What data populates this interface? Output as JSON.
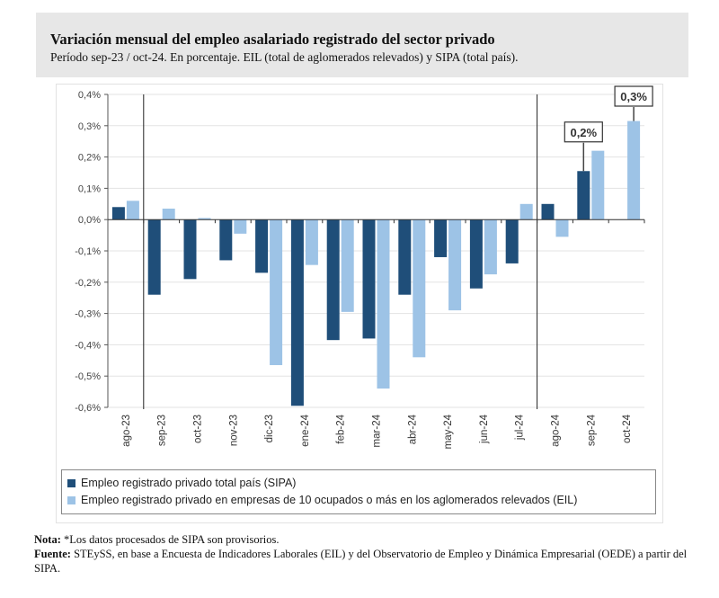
{
  "header": {
    "title": "Variación mensual del empleo asalariado registrado del sector privado",
    "subtitle": "Período sep-23 / oct-24. En porcentaje. EIL (total de aglomerados relevados) y SIPA (total país)."
  },
  "chart_data": {
    "type": "bar",
    "categories": [
      "ago-23",
      "sep-23",
      "oct-23",
      "nov-23",
      "dic-23",
      "ene-24",
      "feb-24",
      "mar-24",
      "abr-24",
      "may-24",
      "jun-24",
      "jul-24",
      "ago-24",
      "sep-24",
      "oct-24"
    ],
    "series": [
      {
        "name": "Empleo registrado privado total país (SIPA)",
        "color": "#1f4e79",
        "values": [
          0.04,
          -0.24,
          -0.19,
          -0.13,
          -0.17,
          -0.595,
          -0.385,
          -0.38,
          -0.24,
          -0.12,
          -0.22,
          -0.14,
          0.05,
          0.155,
          null
        ]
      },
      {
        "name": "Empleo registrado privado en empresas de 10 ocupados o más en los aglomerados relevados (EIL)",
        "color": "#9dc3e6",
        "values": [
          0.06,
          0.035,
          0.005,
          -0.045,
          -0.465,
          -0.145,
          -0.295,
          -0.54,
          -0.44,
          -0.29,
          -0.175,
          0.05,
          -0.055,
          0.22,
          0.315
        ]
      }
    ],
    "yticks": [
      "0,4%",
      "0,3%",
      "0,2%",
      "0,1%",
      "0,0%",
      "-0,1%",
      "-0,2%",
      "-0,3%",
      "-0,4%",
      "-0,5%",
      "-0,6%"
    ],
    "ylim": [
      -0.6,
      0.4
    ],
    "grid": true,
    "legend": "bottom",
    "annotations": [
      {
        "category": "sep-24",
        "series": 0,
        "text": "0,2%"
      },
      {
        "category": "oct-24",
        "series": 1,
        "text": "0,3%"
      }
    ]
  },
  "notes": {
    "nota_label": "Nota:",
    "nota": " *Los datos procesados de SIPA son provisorios.",
    "fuente_label": "Fuente:",
    "fuente": " STEySS, en base a Encuesta de Indicadores Laborales (EIL) y del Observatorio de Empleo y Dinámica Empresarial (OEDE) a partir del SIPA."
  }
}
